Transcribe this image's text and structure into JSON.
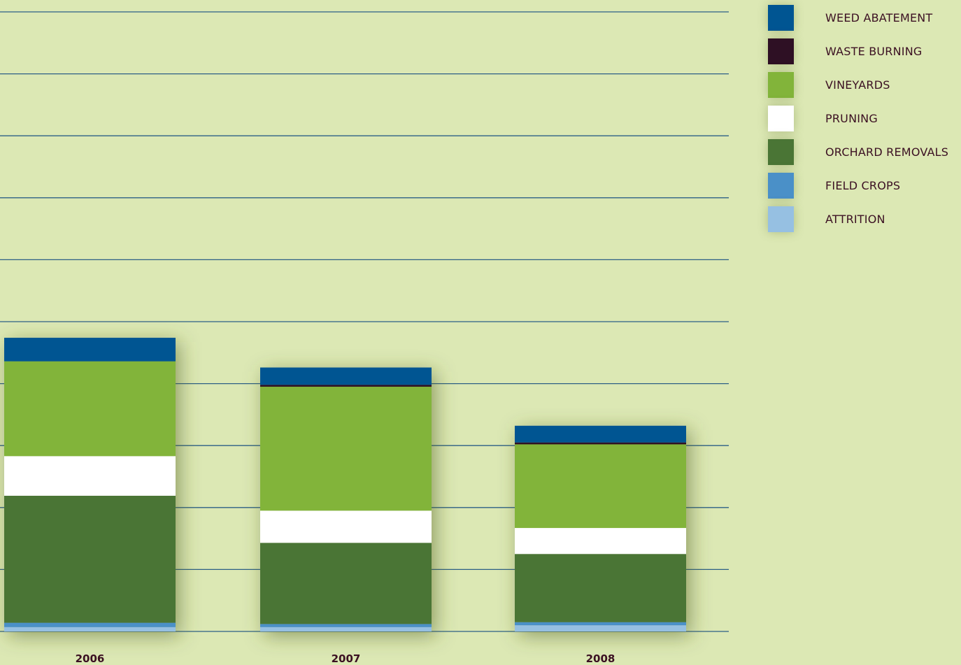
{
  "chart_data": {
    "type": "bar",
    "stacked": true,
    "categories": [
      "2006",
      "2007",
      "2008"
    ],
    "series": [
      {
        "name": "ATTRITION",
        "color": "#96c0e2",
        "values": [
          0.07,
          0.07,
          0.1
        ]
      },
      {
        "name": "FIELD CROPS",
        "color": "#4a90c8",
        "values": [
          0.07,
          0.05,
          0.05
        ]
      },
      {
        "name": "ORCHARD REMOVALS",
        "color": "#4a7535",
        "values": [
          2.05,
          1.31,
          1.1
        ]
      },
      {
        "name": "PRUNING",
        "color": "#ffffff",
        "values": [
          0.64,
          0.52,
          0.42
        ]
      },
      {
        "name": "VINEYARDS",
        "color": "#82b43a",
        "values": [
          1.53,
          2.0,
          1.35
        ]
      },
      {
        "name": "WASTE BURNING",
        "color": "#2e1024",
        "values": [
          0.0,
          0.03,
          0.03
        ]
      },
      {
        "name": "WEED ABATEMENT",
        "color": "#005592",
        "values": [
          0.38,
          0.28,
          0.27
        ]
      }
    ],
    "ylim": [
      0,
      10
    ],
    "grid": true,
    "legend": "right"
  }
}
